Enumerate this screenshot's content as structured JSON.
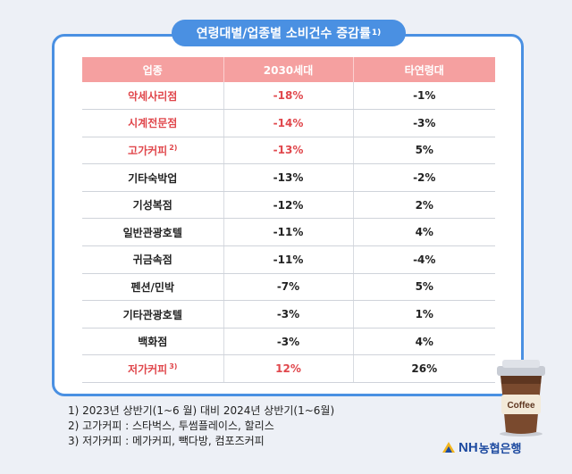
{
  "title": "연령대별/업종별 소비건수 증감률",
  "title_note": "1)",
  "chart_data": {
    "type": "table",
    "columns": [
      "업종",
      "2030세대",
      "타연령대"
    ],
    "rows": [
      {
        "category": "악세사리점",
        "note": "",
        "gen2030": "-18%",
        "other": "-1%",
        "highlight": true
      },
      {
        "category": "시계전문점",
        "note": "",
        "gen2030": "-14%",
        "other": "-3%",
        "highlight": true
      },
      {
        "category": "고가커피",
        "note": "2)",
        "gen2030": "-13%",
        "other": "5%",
        "highlight": true
      },
      {
        "category": "기타숙박업",
        "note": "",
        "gen2030": "-13%",
        "other": "-2%",
        "highlight": false
      },
      {
        "category": "기성복점",
        "note": "",
        "gen2030": "-12%",
        "other": "2%",
        "highlight": false
      },
      {
        "category": "일반관광호텔",
        "note": "",
        "gen2030": "-11%",
        "other": "4%",
        "highlight": false
      },
      {
        "category": "귀금속점",
        "note": "",
        "gen2030": "-11%",
        "other": "-4%",
        "highlight": false
      },
      {
        "category": "펜션/민박",
        "note": "",
        "gen2030": "-7%",
        "other": "5%",
        "highlight": false
      },
      {
        "category": "기타관광호텔",
        "note": "",
        "gen2030": "-3%",
        "other": "1%",
        "highlight": false
      },
      {
        "category": "백화점",
        "note": "",
        "gen2030": "-3%",
        "other": "4%",
        "highlight": false
      },
      {
        "category": "저가커피",
        "note": "3)",
        "gen2030": "12%",
        "other": "26%",
        "highlight": true
      }
    ]
  },
  "notes": [
    "1)  2023년 상반기(1~6 월) 대비 2024년 상반기(1~6월)",
    "2) 고가커피 : 스타벅스, 투썸플레이스, 할리스",
    "3) 저가커피 : 메가커피, 빽다방, 컴포즈커피"
  ],
  "cup_label": "Coffee",
  "logo": {
    "latin": "NH",
    "korean": "농협은행"
  },
  "colors": {
    "accent_blue": "#4a90e2",
    "header_pink": "#f5a0a0",
    "highlight_red": "#e0474c",
    "logo_blue": "#1d4aa0",
    "logo_yellow": "#f2b51e"
  }
}
